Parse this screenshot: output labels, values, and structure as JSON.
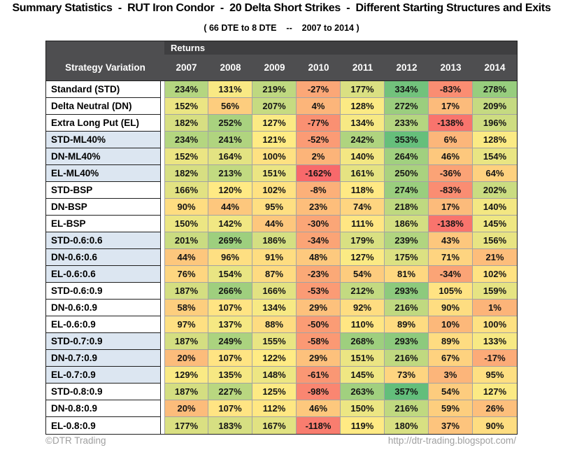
{
  "title": "Summary Statistics  -  RUT Iron Condor  -  20 Delta Short Strikes  -  Different Starting Structures and Exits",
  "subtitle": "( 66 DTE to 8 DTE    --    2007 to 2014 )",
  "table": {
    "returns_label": "Returns",
    "corner_label": "Strategy Variation"
  },
  "footer": {
    "left": "©DTR Trading",
    "right": "http://dtr-trading.blogspot.com/"
  },
  "colors": {
    "heatmap_min": "#F8696B",
    "heatmap_mid": "#FFEB84",
    "heatmap_max": "#63BE7B",
    "header_bg": "#4e4e50",
    "returns_band_bg": "#3f3f41",
    "shaded_label_bg": "#DCE6F1"
  },
  "chart_data": {
    "type": "heatmap",
    "title": "Summary Statistics - RUT Iron Condor - 20 Delta Short Strikes - Different Starting Structures and Exits",
    "subtitle": "( 66 DTE to 8 DTE -- 2007 to 2014 )",
    "value_group_label": "Returns",
    "row_axis_label": "Strategy Variation",
    "columns": [
      "2007",
      "2008",
      "2009",
      "2010",
      "2011",
      "2012",
      "2013",
      "2014"
    ],
    "rows": [
      "Standard (STD)",
      "Delta Neutral (DN)",
      "Extra Long Put (EL)",
      "STD-ML40%",
      "DN-ML40%",
      "EL-ML40%",
      "STD-BSP",
      "DN-BSP",
      "EL-BSP",
      "STD-0.6:0.6",
      "DN-0.6:0.6",
      "EL-0.6:0.6",
      "STD-0.6:0.9",
      "DN-0.6:0.9",
      "EL-0.6:0.9",
      "STD-0.7:0.9",
      "DN-0.7:0.9",
      "EL-0.7:0.9",
      "STD-0.8:0.9",
      "DN-0.8:0.9",
      "EL-0.8:0.9"
    ],
    "values_pct": [
      [
        234,
        131,
        219,
        -27,
        177,
        334,
        -83,
        278
      ],
      [
        152,
        56,
        207,
        4,
        128,
        272,
        17,
        209
      ],
      [
        182,
        252,
        127,
        -77,
        134,
        233,
        -138,
        196
      ],
      [
        234,
        241,
        121,
        -52,
        242,
        353,
        6,
        128
      ],
      [
        152,
        164,
        100,
        2,
        140,
        264,
        46,
        154
      ],
      [
        182,
        213,
        151,
        -162,
        161,
        250,
        -36,
        64
      ],
      [
        166,
        120,
        102,
        -8,
        118,
        274,
        -83,
        202
      ],
      [
        90,
        44,
        95,
        23,
        74,
        218,
        17,
        140
      ],
      [
        150,
        142,
        44,
        -30,
        111,
        186,
        -138,
        145
      ],
      [
        201,
        269,
        186,
        -34,
        179,
        239,
        43,
        156
      ],
      [
        44,
        96,
        91,
        48,
        127,
        175,
        71,
        21
      ],
      [
        76,
        154,
        87,
        -23,
        54,
        81,
        -34,
        102
      ],
      [
        187,
        266,
        166,
        -53,
        212,
        293,
        105,
        159
      ],
      [
        58,
        107,
        134,
        29,
        92,
        216,
        90,
        1
      ],
      [
        97,
        137,
        88,
        -50,
        110,
        89,
        10,
        100
      ],
      [
        187,
        249,
        155,
        -58,
        268,
        293,
        89,
        133
      ],
      [
        20,
        107,
        122,
        29,
        151,
        216,
        67,
        -17
      ],
      [
        129,
        135,
        148,
        -61,
        145,
        73,
        3,
        95
      ],
      [
        187,
        227,
        125,
        -98,
        263,
        357,
        54,
        127
      ],
      [
        20,
        107,
        112,
        46,
        150,
        216,
        59,
        26
      ],
      [
        177,
        183,
        167,
        -118,
        119,
        180,
        37,
        90
      ]
    ],
    "units": "%",
    "color_scale": "3-color scale red-yellow-green, midpoint at 50th percentile",
    "legend": "none",
    "grid": "on"
  }
}
